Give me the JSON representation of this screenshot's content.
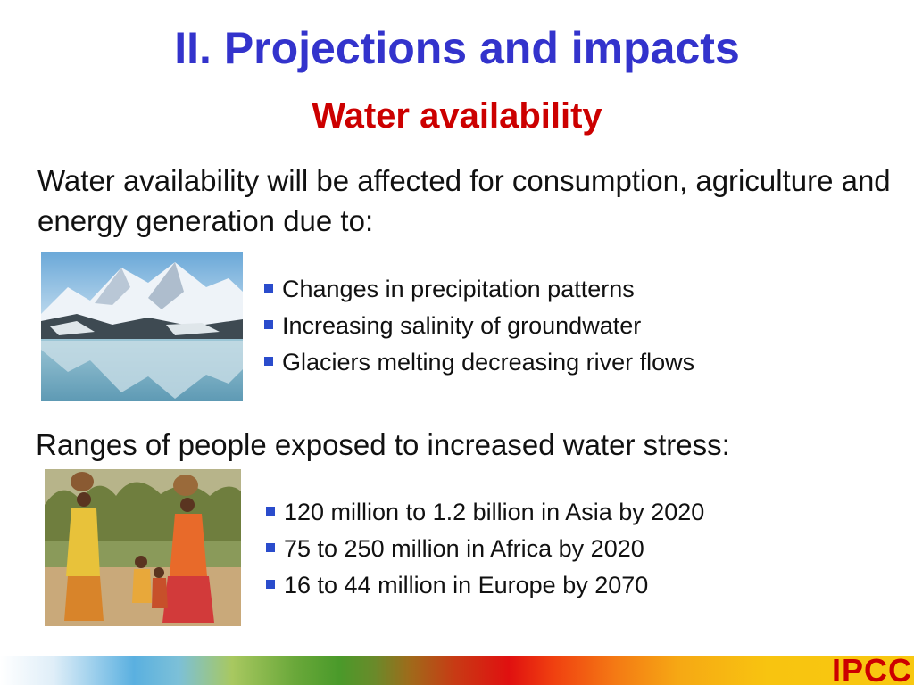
{
  "slide": {
    "title": "II. Projections and impacts",
    "subtitle": "Water availability",
    "intro": "Water availability will be affected for consumption, agriculture and energy generation due to:",
    "causes": [
      "Changes in precipitation patterns",
      "Increasing salinity of groundwater",
      "Glaciers melting decreasing river flows"
    ],
    "stress_heading": "Ranges of people exposed to increased water stress:",
    "exposure": [
      "120 million to 1.2 billion in Asia by 2020",
      "75 to 250 million in Africa by 2020",
      "16 to 44 million in Europe by 2070"
    ],
    "logo": "IPCC"
  },
  "icons": {
    "bullet": "square-bullet-icon"
  },
  "colors": {
    "title": "#3333cc",
    "subtitle": "#cc0000",
    "bullet": "#2a4ccc",
    "logo": "#cc0000"
  }
}
